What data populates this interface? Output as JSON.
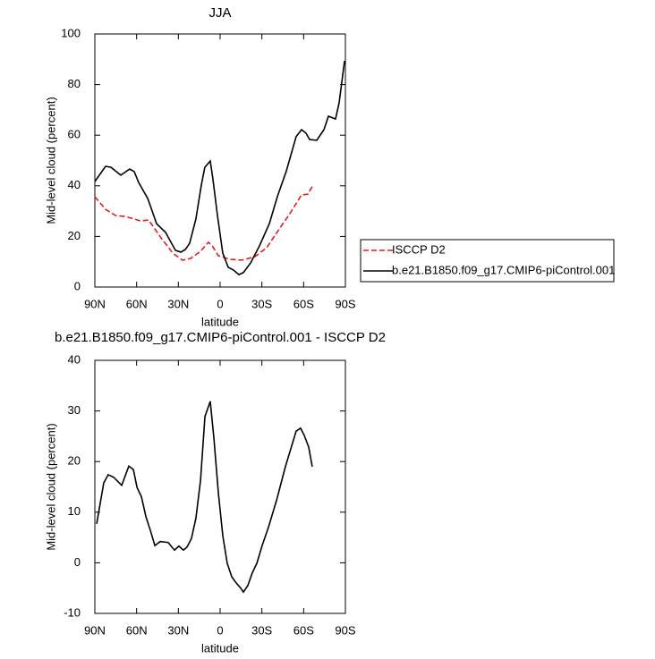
{
  "chart_data": [
    {
      "type": "line",
      "title": "JJA",
      "xlabel": "latitude",
      "ylabel": "Mid-level cloud (percent)",
      "xlim": [
        90,
        -90
      ],
      "ylim": [
        0,
        100
      ],
      "xticks": [
        {
          "value": 90,
          "label": "90N"
        },
        {
          "value": 60,
          "label": "60N"
        },
        {
          "value": 30,
          "label": "30N"
        },
        0,
        {
          "value": -30,
          "label": "30S"
        },
        {
          "value": -60,
          "label": "60S"
        },
        {
          "value": -90,
          "label": "90S"
        }
      ],
      "yticks": [
        0,
        20,
        40,
        60,
        80,
        100
      ],
      "legend": "right",
      "series": [
        {
          "name": "ISCCP D2",
          "color": "#e41a1c",
          "dash": true,
          "x": [
            90,
            82.3,
            75.2,
            68.8,
            61.7,
            57.2,
            51.4,
            42.4,
            34,
            27,
            21.2,
            14.1,
            8.4,
            5.2,
            1.3,
            -6.4,
            -15.4,
            -25,
            -33.4,
            -41.7,
            -50.1,
            -58.5,
            -63,
            -66.8
          ],
          "values": [
            35.7,
            30.7,
            28.3,
            27.9,
            26.9,
            26.1,
            26.5,
            19.4,
            13.4,
            10.6,
            11.3,
            14.1,
            17.7,
            15.9,
            12.4,
            11,
            10.6,
            12,
            15.5,
            22.3,
            29,
            36.4,
            36.7,
            40.3
          ]
        },
        {
          "name": "b.e21.B1850.f09_g17.CMIP6-piControl.001",
          "color": "#000000",
          "dash": false,
          "x": [
            90,
            82.3,
            78.4,
            71.4,
            65,
            61.7,
            58.5,
            52,
            45.6,
            39.2,
            32.1,
            28.3,
            25,
            21.9,
            17.4,
            13.5,
            11,
            7.1,
            5.2,
            2,
            -1.9,
            -5.8,
            -9.6,
            -13.5,
            -16.7,
            -21.9,
            -28.3,
            -35.4,
            -41.1,
            -47.6,
            -54.6,
            -58.5,
            -61.7,
            -64.3,
            -69.4,
            -74.6,
            -77.8,
            -82.9,
            -85.5,
            -89.4
          ],
          "values": [
            41.7,
            47.7,
            47.3,
            44.2,
            46.6,
            45.6,
            41.3,
            35,
            25,
            21.6,
            14.5,
            13.8,
            14.8,
            17.3,
            26.9,
            40.3,
            47.3,
            49.8,
            42.8,
            28.6,
            13.4,
            7.8,
            6.7,
            4.9,
            5.7,
            9.5,
            16.3,
            25.1,
            35.7,
            45.9,
            59.4,
            62.2,
            60.8,
            58.3,
            58,
            62.2,
            67.5,
            66.4,
            72.8,
            89.4
          ]
        }
      ]
    },
    {
      "type": "line",
      "title": "b.e21.B1850.f09_g17.CMIP6-piControl.001 - ISCCP D2",
      "xlabel": "latitude",
      "ylabel": "Mid-level cloud (percent)",
      "xlim": [
        90,
        -90
      ],
      "ylim": [
        -10,
        40
      ],
      "xticks": [
        {
          "value": 90,
          "label": "90N"
        },
        {
          "value": 60,
          "label": "60N"
        },
        {
          "value": 30,
          "label": "30N"
        },
        0,
        {
          "value": -30,
          "label": "30S"
        },
        {
          "value": -60,
          "label": "60S"
        },
        {
          "value": -90,
          "label": "90S"
        }
      ],
      "yticks": [
        -10,
        0,
        10,
        20,
        30,
        40
      ],
      "series": [
        {
          "color": "#000000",
          "x": [
            88.7,
            83.6,
            80.4,
            76.5,
            70.7,
            65.6,
            62.3,
            59.7,
            56.5,
            53.3,
            50.1,
            46.9,
            43,
            37.3,
            32.8,
            29.6,
            26.4,
            23.8,
            20.6,
            17.4,
            14.1,
            10.9,
            7.1,
            4.5,
            1.3,
            -1.9,
            -5.1,
            -8.4,
            -11.6,
            -14.8,
            -16.7,
            -19.9,
            -23.1,
            -26.4,
            -30.2,
            -34.7,
            -40.5,
            -46.9,
            -54.6,
            -57.8,
            -60.4,
            -63.6,
            -66.2
          ],
          "values": [
            7.7,
            15.8,
            17.4,
            16.9,
            15.3,
            19.1,
            18.4,
            14.9,
            13,
            9.1,
            6.4,
            3.4,
            4.2,
            4,
            2.5,
            3.3,
            2.5,
            3.1,
            4.8,
            8.8,
            16.2,
            28.9,
            31.9,
            24.7,
            13.9,
            5.4,
            -0.1,
            -2.8,
            -4,
            -5,
            -5.8,
            -4.5,
            -2,
            -0.1,
            3.4,
            7,
            12.3,
            19,
            26,
            26.6,
            25.2,
            22.9,
            19
          ]
        }
      ]
    }
  ]
}
